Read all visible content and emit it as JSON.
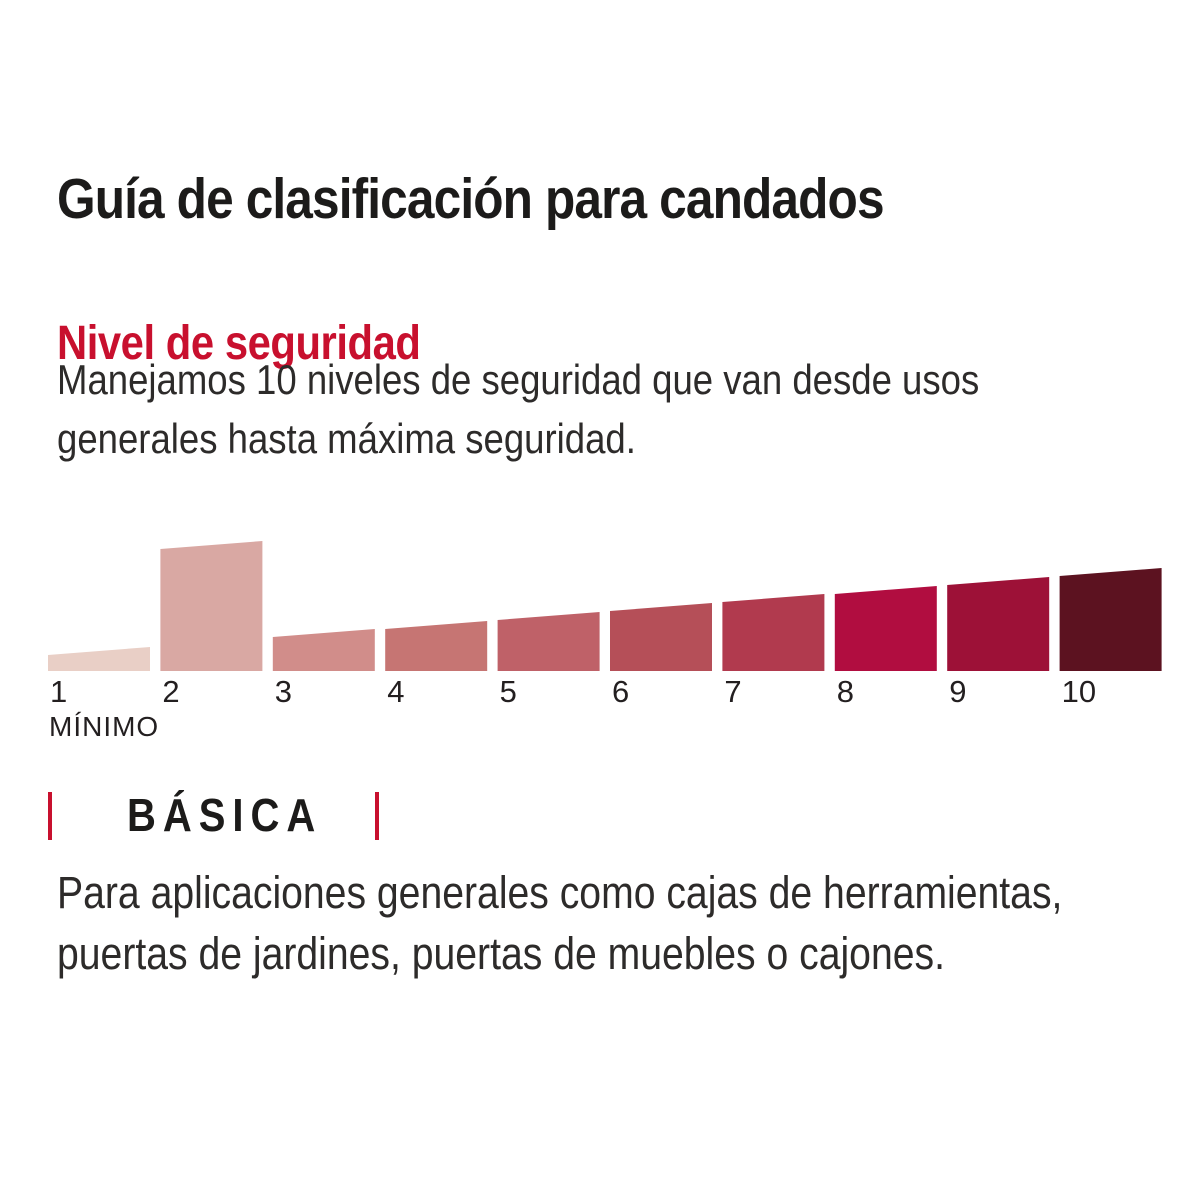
{
  "page": {
    "title": "Guía de clasificación para candados",
    "accent_color": "#c8102e",
    "background": "#ffffff"
  },
  "section": {
    "heading": "Nivel de seguridad",
    "intro_lines": {
      "0": "Manejamos 10 niveles de seguridad que van desde usos",
      "1": "generales hasta máxima seguridad."
    }
  },
  "chart_data": {
    "type": "bar",
    "title": "Nivel de seguridad",
    "categories": [
      "1",
      "2",
      "3",
      "4",
      "5",
      "6",
      "7",
      "8",
      "9",
      "10"
    ],
    "values": [
      16,
      122,
      34,
      42,
      51,
      60,
      69,
      77,
      86,
      95
    ],
    "slant_rise": 8,
    "highlighted_level": 2,
    "min_label": "MÍNIMO",
    "bar_colors": [
      "#e9cfc6",
      "#d9a8a3",
      "#d18d8a",
      "#c67573",
      "#bf6168",
      "#b54f58",
      "#b13a4e",
      "#b10d40",
      "#9d1137",
      "#5c1220"
    ],
    "xlabel": "",
    "ylabel": "",
    "legend": "none",
    "grid": "off",
    "note": "10 security levels from general use (1, MÍNIMO) to maximum security (10); level 2 is highlighted as the product's rating"
  },
  "classification": {
    "label": "BÁSICA",
    "description_lines": {
      "0": "Para aplicaciones generales como cajas de herramientas,",
      "1": "puertas de jardines, puertas de muebles o cajones."
    }
  }
}
